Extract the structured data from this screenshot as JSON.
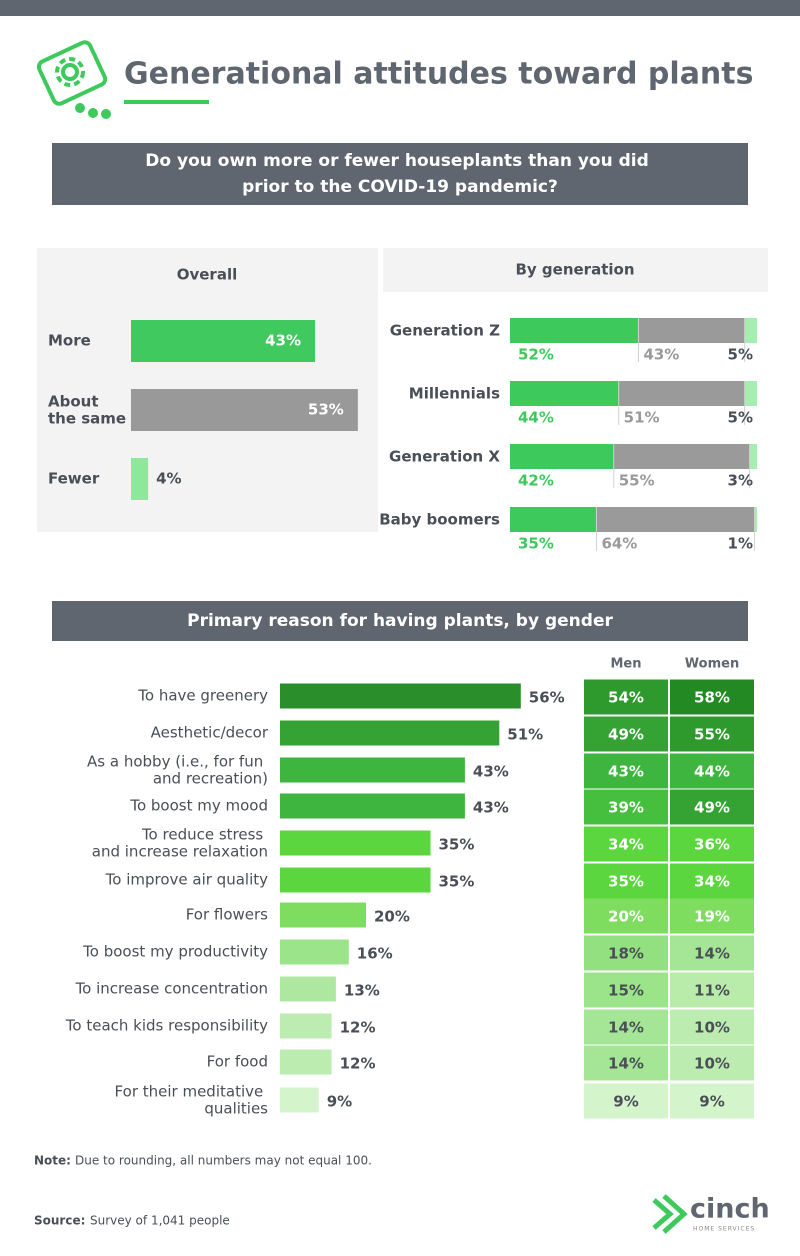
{
  "header": {
    "title": "Generational attitudes toward plants"
  },
  "section": {
    "title": "Do you own more or fewer houseplants than you did prior to the COVID-19 pandemic?"
  },
  "chart_data": [
    {
      "type": "bar",
      "title": "Overall",
      "categories": [
        "More",
        "About the same",
        "Fewer"
      ],
      "values": [
        43,
        53,
        4
      ],
      "value_labels": [
        "43%",
        "53%",
        "4%"
      ],
      "colors": [
        "#3fc95e",
        "#999999",
        "#8ee89c"
      ]
    },
    {
      "type": "stacked_bar",
      "title": "By generation",
      "categories": [
        "Generation Z",
        "Millennials",
        "Generation X",
        "Baby boomers"
      ],
      "series": [
        {
          "color": "#3ec95c",
          "values": [
            52,
            44,
            42,
            35
          ],
          "value_labels": [
            "52%",
            "44%",
            "42%",
            "35%"
          ]
        },
        {
          "color": "#9a9a9a",
          "values": [
            43,
            51,
            55,
            64
          ],
          "value_labels": [
            "43%",
            "51%",
            "55%",
            "64%"
          ]
        },
        {
          "color": "#a6eeb0",
          "values": [
            5,
            5,
            3,
            1
          ],
          "value_labels": [
            "5%",
            "5%",
            "3%",
            "1%"
          ]
        }
      ]
    },
    {
      "type": "bar",
      "title": "Primary reason for having plants, by gender",
      "categories": [
        "To have greenery",
        "Aesthetic/decor",
        "As a hobby (i.e., for fun and recreation)",
        "To boost my mood",
        "To reduce stress and increase relaxation",
        "To improve air quality",
        "For flowers",
        "To boost my productivity",
        "To increase concentration",
        "To teach kids responsibility",
        "For food",
        "For their meditative qualities"
      ],
      "values": [
        56,
        51,
        43,
        43,
        35,
        35,
        20,
        16,
        13,
        12,
        12,
        9
      ],
      "value_labels": [
        "56%",
        "51%",
        "43%",
        "43%",
        "35%",
        "35%",
        "20%",
        "16%",
        "13%",
        "12%",
        "12%",
        "9%"
      ],
      "colors": [
        "#2a8f2a",
        "#34a334",
        "#3eb53e",
        "#3eb53e",
        "#5cd63e",
        "#5cd63e",
        "#7edc5f",
        "#9be48a",
        "#aee8a0",
        "#bdecb0",
        "#bdecb0",
        "#d4f4cb"
      ]
    },
    {
      "type": "heatmap",
      "series": [
        {
          "name": "Men",
          "values": [
            54,
            49,
            43,
            39,
            34,
            35,
            20,
            18,
            15,
            14,
            14,
            9
          ],
          "value_labels": [
            "54%",
            "49%",
            "43%",
            "39%",
            "34%",
            "35%",
            "20%",
            "18%",
            "15%",
            "14%",
            "14%",
            "9%"
          ],
          "colors": [
            "#2e9a2e",
            "#34a334",
            "#3eb53e",
            "#45bf3d",
            "#5cd63e",
            "#5cd63e",
            "#7edc5f",
            "#92e07f",
            "#9be48a",
            "#a5e696",
            "#a5e696",
            "#d4f4cb"
          ]
        },
        {
          "name": "Women",
          "values": [
            58,
            55,
            44,
            49,
            36,
            34,
            19,
            14,
            11,
            10,
            10,
            9
          ],
          "value_labels": [
            "58%",
            "55%",
            "44%",
            "49%",
            "36%",
            "34%",
            "19%",
            "14%",
            "11%",
            "10%",
            "10%",
            "9%"
          ],
          "colors": [
            "#238a23",
            "#2e9a2e",
            "#3eb53e",
            "#34a334",
            "#5cd63e",
            "#5cd63e",
            "#7edc5f",
            "#a5e696",
            "#b9ecaa",
            "#bdecb0",
            "#bdecb0",
            "#d4f4cb"
          ]
        }
      ]
    }
  ],
  "footer": {
    "note_label": "Note:",
    "note": "Due to rounding, all numbers may not equal 100.",
    "source_label": "Source:",
    "source": "Survey of 1,041 people",
    "logo": "cinch",
    "logo_tagline": "HOME SERVICES"
  }
}
